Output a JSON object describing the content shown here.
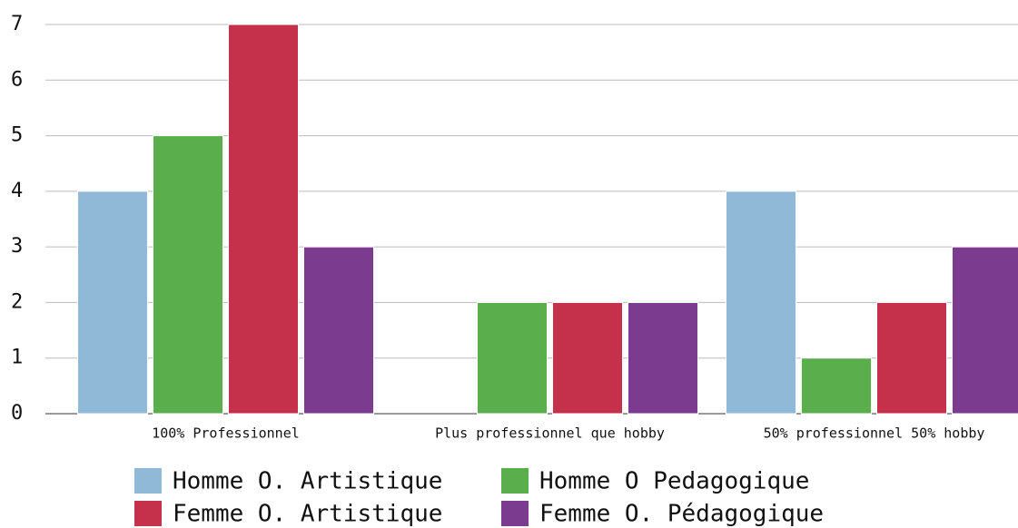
{
  "chart_data": {
    "type": "bar",
    "categories": [
      "100% Professionnel",
      "Plus professionnel que hobby",
      "50% professionnel 50% hobby"
    ],
    "series": [
      {
        "name": "Homme O. Artistique",
        "color": "#8fb9d6",
        "values": [
          4,
          0,
          4
        ]
      },
      {
        "name": "Homme O Pedagogique",
        "color": "#5aae4b",
        "values": [
          5,
          2,
          1
        ]
      },
      {
        "name": "Femme O. Artistique",
        "color": "#c5304b",
        "values": [
          7,
          2,
          2
        ]
      },
      {
        "name": "Femme O. Pédagogique",
        "color": "#7b3b8f",
        "values": [
          3,
          2,
          3
        ]
      }
    ],
    "ylim": [
      0,
      7
    ],
    "yticks": [
      0,
      1,
      2,
      3,
      4,
      5,
      6,
      7
    ],
    "grid": true
  }
}
